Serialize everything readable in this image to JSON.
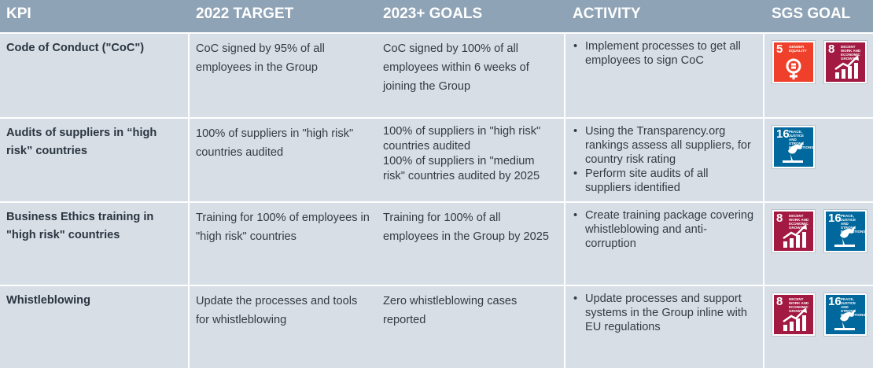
{
  "headers": {
    "kpi": "KPI",
    "target": "2022 TARGET",
    "goals": "2023+ GOALS",
    "activity": "ACTIVITY",
    "sgs": "SGS GOAL"
  },
  "rows": [
    {
      "kpi": "Code of Conduct (\"CoC\")",
      "target": "CoC signed by 95% of all employees in the Group",
      "goals": [
        "CoC signed by 100% of all employees within 6 weeks of joining the Group"
      ],
      "activity": [
        "Implement processes to get all employees to sign CoC"
      ],
      "sdg": [
        {
          "number": "5",
          "label": "GENDER EQUALITY",
          "icon": "gender-equality-icon",
          "color": "#ef402b"
        },
        {
          "number": "8",
          "label": "DECENT WORK AND ECONOMIC GROWTH",
          "icon": "economic-growth-icon",
          "color": "#a21942"
        }
      ]
    },
    {
      "kpi": "Audits of suppliers in “high risk” countries",
      "target": "100% of suppliers in \"high risk\" countries audited",
      "goals": [
        "100% of suppliers in \"high risk\" countries audited",
        "100% of suppliers in \"medium risk\" countries audited by 2025"
      ],
      "activity": [
        "Using the Transparency.org rankings assess all suppliers, for country risk rating",
        "Perform site audits of all suppliers identified"
      ],
      "sdg": [
        {
          "number": "16",
          "label": "PEACE, JUSTICE AND STRONG INSTITUTIONS",
          "icon": "peace-dove-icon",
          "color": "#00689d"
        }
      ]
    },
    {
      "kpi": "Business Ethics training in \"high risk\" countries",
      "target": "Training for 100% of employees in \"high risk\" countries",
      "goals": [
        "Training for 100% of all employees in the Group by 2025"
      ],
      "activity": [
        "Create training package covering whistleblowing and anti-corruption"
      ],
      "sdg": [
        {
          "number": "8",
          "label": "DECENT WORK AND ECONOMIC GROWTH",
          "icon": "economic-growth-icon",
          "color": "#a21942"
        },
        {
          "number": "16",
          "label": "PEACE, JUSTICE AND STRONG INSTITUTIONS",
          "icon": "peace-dove-icon",
          "color": "#00689d"
        }
      ]
    },
    {
      "kpi": "Whistleblowing",
      "target": "Update the processes and tools for whistleblowing",
      "goals": [
        "Zero whistleblowing cases reported"
      ],
      "activity": [
        "Update processes and support systems in the Group inline with EU regulations"
      ],
      "sdg": [
        {
          "number": "8",
          "label": "DECENT WORK AND ECONOMIC GROWTH",
          "icon": "economic-growth-icon",
          "color": "#a21942"
        },
        {
          "number": "16",
          "label": "PEACE, JUSTICE AND STRONG INSTITUTIONS",
          "icon": "peace-dove-icon",
          "color": "#00689d"
        }
      ]
    }
  ]
}
